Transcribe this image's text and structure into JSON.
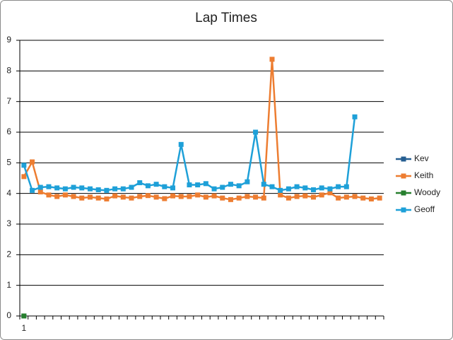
{
  "chart_data": {
    "type": "line",
    "title": "Lap Times",
    "categories": [
      "1",
      null,
      null,
      null,
      null,
      null,
      null,
      null,
      null,
      null,
      null,
      null,
      null,
      null,
      null,
      null,
      null,
      null,
      null,
      null,
      null,
      null,
      null,
      null,
      null,
      null,
      null,
      null,
      null,
      null,
      null,
      null,
      null,
      null,
      null,
      null,
      null,
      null,
      null,
      null,
      null,
      null,
      null,
      null
    ],
    "series": [
      {
        "name": "Kev",
        "color": "#255e91",
        "values": [
          0,
          null,
          null,
          null,
          null,
          null,
          null,
          null,
          null,
          null,
          null,
          null,
          null,
          null,
          null,
          null,
          null,
          null,
          null,
          null,
          null,
          null,
          null,
          null,
          null,
          null,
          null,
          null,
          null,
          null,
          null,
          null,
          null,
          null,
          null,
          null,
          null,
          null,
          null,
          null,
          null,
          null,
          null,
          null
        ]
      },
      {
        "name": "Keith",
        "color": "#ed7d31",
        "values": [
          4.55,
          5.03,
          4.05,
          3.95,
          3.9,
          3.95,
          3.9,
          3.85,
          3.88,
          3.85,
          3.82,
          3.92,
          3.88,
          3.85,
          3.9,
          3.93,
          3.88,
          3.83,
          3.92,
          3.9,
          3.9,
          3.95,
          3.88,
          3.92,
          3.85,
          3.8,
          3.85,
          3.9,
          3.88,
          3.85,
          8.38,
          3.95,
          3.85,
          3.9,
          3.92,
          3.88,
          3.95,
          4.02,
          3.85,
          3.88,
          3.9,
          3.85,
          3.82,
          3.85
        ]
      },
      {
        "name": "Woody",
        "color": "#267f2e",
        "values": [
          0,
          null,
          null,
          null,
          null,
          null,
          null,
          null,
          null,
          null,
          null,
          null,
          null,
          null,
          null,
          null,
          null,
          null,
          null,
          null,
          null,
          null,
          null,
          null,
          null,
          null,
          null,
          null,
          null,
          null,
          null,
          null,
          null,
          null,
          null,
          null,
          null,
          null,
          null,
          null,
          null,
          null,
          null,
          null
        ]
      },
      {
        "name": "Geoff",
        "color": "#1ea0d8",
        "values": [
          4.92,
          4.1,
          4.2,
          4.22,
          4.18,
          4.15,
          4.2,
          4.18,
          4.15,
          4.12,
          4.1,
          4.15,
          4.15,
          4.2,
          4.35,
          4.25,
          4.3,
          4.22,
          4.18,
          5.6,
          4.28,
          4.28,
          4.32,
          4.15,
          4.2,
          4.3,
          4.25,
          4.38,
          6.0,
          4.3,
          4.22,
          4.1,
          4.15,
          4.22,
          4.18,
          4.12,
          4.18,
          4.15,
          4.22,
          4.22,
          6.5,
          null,
          null,
          null
        ]
      }
    ],
    "ylim": [
      0,
      9
    ],
    "yticks": [
      0,
      1,
      2,
      3,
      4,
      5,
      6,
      7,
      8,
      9
    ],
    "grid": true,
    "legend": "right"
  }
}
